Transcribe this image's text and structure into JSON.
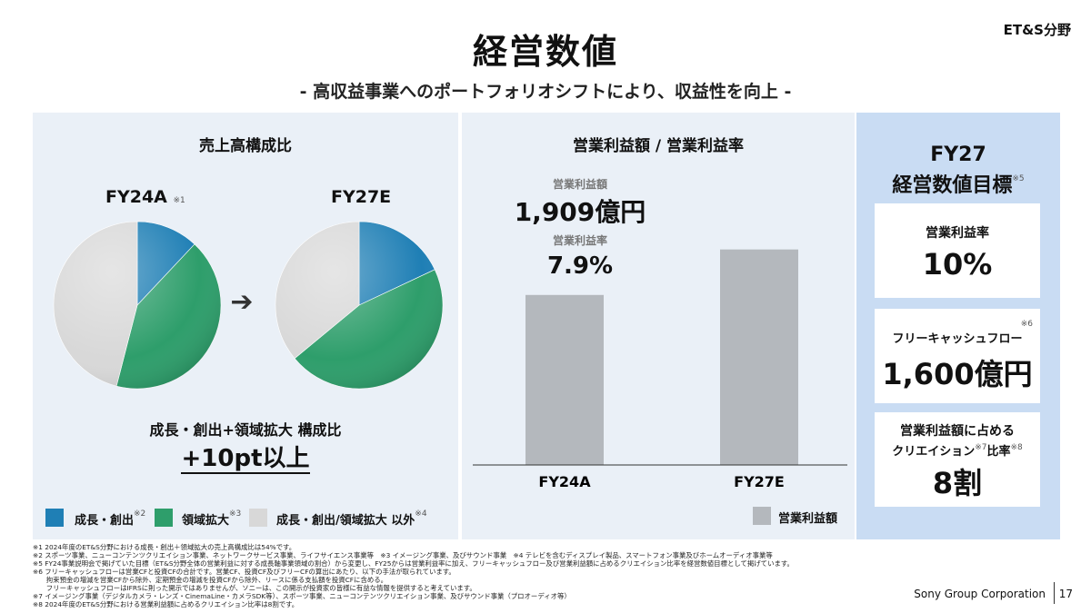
{
  "header": {
    "title": "経営数値",
    "subtitle": "- 高収益事業へのポートフォリオシフトにより、収益性を向上 -",
    "segment": "ET&S分野"
  },
  "left_panel": {
    "title": "売上高構成比",
    "fy24_label": "FY24A",
    "fy24_note": "※1",
    "fy27_label": "FY27E",
    "caption": "成長・創出+領域拡大 構成比",
    "highlight": "+10pt以上"
  },
  "mid_panel": {
    "title": "営業利益額 / 営業利益率",
    "op_label": "営業利益額",
    "op_value": "1,909億円",
    "margin_label": "営業利益率",
    "margin_value": "7.9%",
    "legend": "営業利益額"
  },
  "right_panel": {
    "title_line1": "FY27",
    "title_line2": "経営数値目標",
    "title_note": "※5",
    "box1_label": "営業利益率",
    "box1_value": "10%",
    "box2_label": "フリーキャッシュフロー",
    "box2_note": "※6",
    "box2_value": "1,600億円",
    "box3_label_line1": "営業利益額に占める",
    "box3_label_line2a": "クリエイション",
    "box3_note_a": "※7",
    "box3_label_line2b": "比率",
    "box3_note_b": "※8",
    "box3_value": "8割"
  },
  "legend": {
    "items": [
      {
        "label": "成長・創出",
        "note": "※2",
        "color": "#1f7fb5"
      },
      {
        "label": "領域拡大",
        "note": "※3",
        "color": "#2e9e6b"
      },
      {
        "label": "成長・創出/領域拡大 以外",
        "note": "※4",
        "color": "#d8d8d8"
      }
    ]
  },
  "chart_data": [
    {
      "type": "pie",
      "categories": [
        "成長・創出",
        "領域拡大",
        "成長・創出/領域拡大 以外"
      ],
      "series": [
        {
          "name": "FY24A",
          "values": [
            12,
            42,
            46
          ]
        },
        {
          "name": "FY27E",
          "values": [
            18,
            46,
            36
          ]
        }
      ],
      "colors": [
        "#1f7fb5",
        "#2e9e6b",
        "#d8d8d8"
      ]
    },
    {
      "type": "bar",
      "categories": [
        "FY24A",
        "FY27E"
      ],
      "series": [
        {
          "name": "営業利益額",
          "values": [
            1909,
            2420
          ]
        }
      ],
      "ylim": [
        0,
        3100
      ],
      "color": "#b4b8bd"
    }
  ],
  "footer": {
    "notes": [
      "※1 2024年度のET&S分野における成長・創出＋領域拡大の売上高構成比は54%です。",
      "※2 スポーツ事業、ニューコンテンツクリエイション事業、ネットワークサービス事業、ライフサイエンス事業等　※3 イメージング事業、及びサウンド事業　※4 テレビを含むディスプレイ製品、スマートフォン事業及びホームオーディオ事業等",
      "※5 FY24事業説明会で掲げていた目標（ET&S分野全体の営業利益に対する成長軸事業領域の割合）から変更し、FY25からは営業利益率に加え、フリーキャッシュフロー及び営業利益額に占めるクリエイション比率を経営数値目標として掲げています。",
      "※6 フリーキャッシュフローは営業CFと投資CFの合計です。営業CF、投資CF及びフリーCFの算出にあたり、以下の手法が取られています。",
      "　　拘束預金の増減を営業CFから除外、定期預金の増減を投資CFから除外、リースに係る支払額を投資CFに含める。",
      "　　フリーキャッシュフローはIFRSに則った開示ではありませんが、ソニーは、この開示が投資家の皆様に有益な情報を提供すると考えています。",
      "※7 イメージング事業（デジタルカメラ・レンズ・CinemaLine・カメラSDK等）、スポーツ事業、ニューコンテンツクリエイション事業、及びサウンド事業（プロオーディオ等）",
      "※8 2024年度のET&S分野における営業利益額に占めるクリエイション比率は8割です。"
    ],
    "company": "Sony Group Corporation",
    "page": "17"
  }
}
